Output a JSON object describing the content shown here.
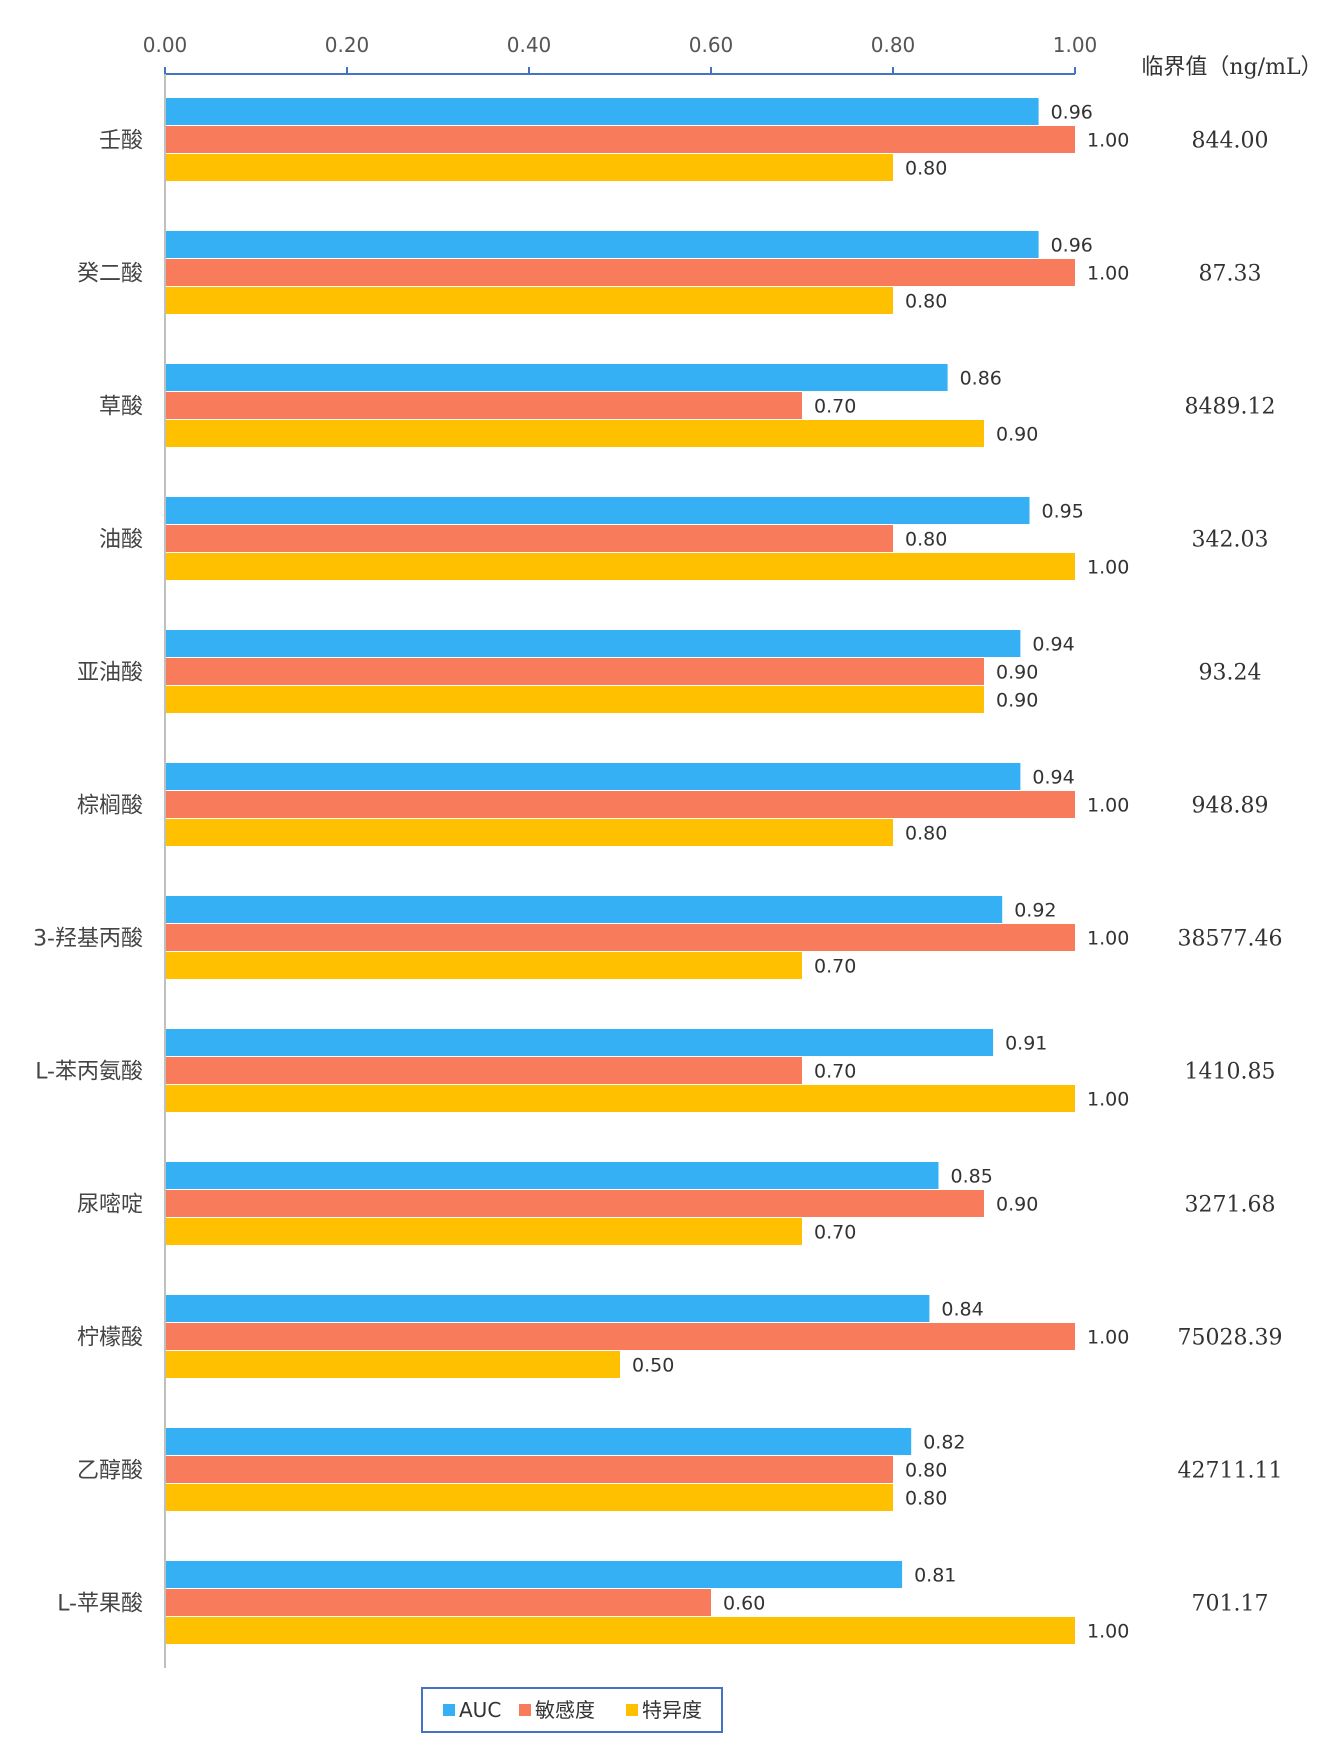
{
  "chart_data": {
    "type": "bar",
    "orientation": "horizontal",
    "xlim": [
      0,
      1
    ],
    "x_ticks": [
      "0.00",
      "0.20",
      "0.40",
      "0.60",
      "0.80",
      "1.00"
    ],
    "x_axis_position": "top",
    "grid": false,
    "legend_position": "bottom-center",
    "categories": [
      "壬酸",
      "癸二酸",
      "草酸",
      "油酸",
      "亚油酸",
      "棕榈酸",
      "3-羟基丙酸",
      "L-苯丙氨酸",
      "尿嘧啶",
      "柠檬酸",
      "乙醇酸",
      "L-苹果酸"
    ],
    "series": [
      {
        "name": "AUC",
        "color": "#36B0F4",
        "values": [
          0.96,
          0.96,
          0.86,
          0.95,
          0.94,
          0.94,
          0.92,
          0.91,
          0.85,
          0.84,
          0.82,
          0.81
        ]
      },
      {
        "name": "敏感度",
        "color": "#F87C5B",
        "values": [
          1.0,
          1.0,
          0.7,
          0.8,
          0.9,
          1.0,
          1.0,
          0.7,
          0.9,
          1.0,
          0.8,
          0.6
        ]
      },
      {
        "name": "特异度",
        "color": "#FFC000",
        "values": [
          0.8,
          0.8,
          0.9,
          1.0,
          0.9,
          0.8,
          0.7,
          1.0,
          0.7,
          0.5,
          0.8,
          1.0
        ]
      }
    ],
    "threshold_title": "临界值（ng/mL）",
    "thresholds": [
      "844.00",
      "87.33",
      "8489.12",
      "342.03",
      "93.24",
      "948.89",
      "38577.46",
      "1410.85",
      "3271.68",
      "75028.39",
      "42711.11",
      "701.17"
    ]
  }
}
